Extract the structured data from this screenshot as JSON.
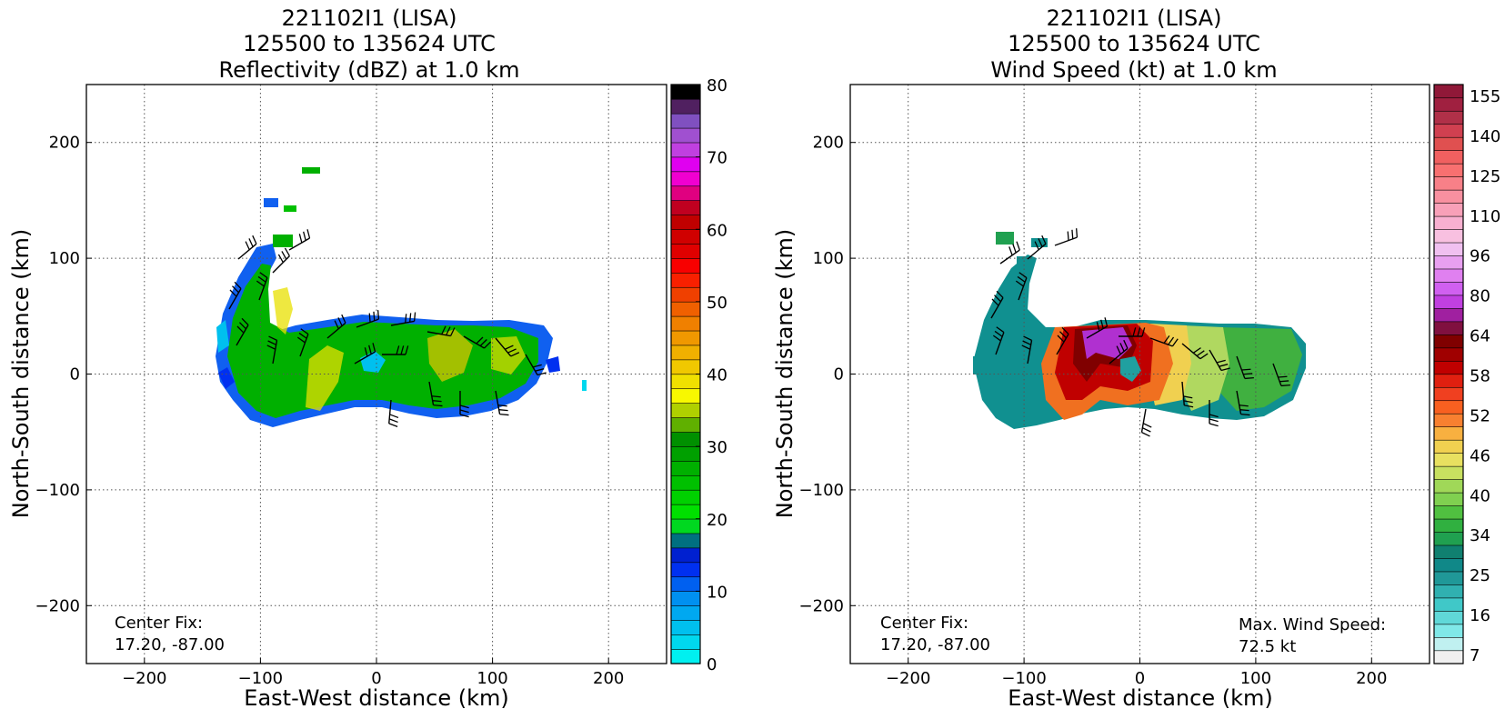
{
  "chart_data": [
    {
      "type": "heatmap",
      "title_lines": [
        "221102I1 (LISA)",
        "125500 to 135624 UTC",
        "Reflectivity (dBZ) at 1.0 km"
      ],
      "xlabel": "East-West distance (km)",
      "ylabel": "North-South distance (km)",
      "xlim": [
        -250,
        250
      ],
      "ylim": [
        -250,
        250
      ],
      "xticks": [
        -200,
        -100,
        0,
        100,
        200
      ],
      "yticks": [
        -200,
        -100,
        0,
        100,
        200
      ],
      "grid": true,
      "annotation_lines": [
        "Center Fix:",
        "17.20, -87.00"
      ],
      "colorbar": {
        "min": 0,
        "max": 80,
        "ticks": [
          0,
          10,
          20,
          30,
          40,
          50,
          60,
          70,
          80
        ],
        "colors": [
          "#00f0f0",
          "#00d8ee",
          "#00c0ee",
          "#00a8f0",
          "#0090f0",
          "#0060f0",
          "#0030f0",
          "#0020d0",
          "#007080",
          "#00d820",
          "#00e000",
          "#00d000",
          "#00c000",
          "#00b000",
          "#00a000",
          "#009000",
          "#60b000",
          "#b0d000",
          "#f8f800",
          "#f0e000",
          "#f0c800",
          "#f0b000",
          "#f09800",
          "#f08000",
          "#f06000",
          "#f04000",
          "#f82000",
          "#f80000",
          "#e00000",
          "#d00000",
          "#c00000",
          "#c00020",
          "#e00080",
          "#f000d0",
          "#e000f0",
          "#c040e0",
          "#a050d0",
          "#8050c0",
          "#502060",
          "#000000"
        ]
      }
    },
    {
      "type": "heatmap",
      "title_lines": [
        "221102I1 (LISA)",
        "125500 to 135624 UTC",
        "Wind Speed (kt) at 1.0 km"
      ],
      "xlabel": "East-West distance (km)",
      "ylabel": "North-South distance (km)",
      "xlim": [
        -250,
        250
      ],
      "ylim": [
        -250,
        250
      ],
      "xticks": [
        -200,
        -100,
        0,
        100,
        200
      ],
      "yticks": [
        -200,
        -100,
        0,
        100,
        200
      ],
      "grid": true,
      "annotation_lines": [
        "Center Fix:",
        "17.20, -87.00"
      ],
      "max_wind_lines": [
        "Max. Wind Speed:",
        "72.5 kt"
      ],
      "colorbar": {
        "tick_labels": [
          "7",
          "16",
          "25",
          "34",
          "40",
          "46",
          "52",
          "58",
          "64",
          "80",
          "96",
          "110",
          "125",
          "140",
          "155"
        ],
        "colors": [
          "#f0f0f0",
          "#c0f0f0",
          "#80e8e8",
          "#60d8d8",
          "#40c8c8",
          "#30b0b0",
          "#209898",
          "#108888",
          "#108070",
          "#20a050",
          "#30b040",
          "#50c040",
          "#80d050",
          "#a0d858",
          "#c8e060",
          "#e8e060",
          "#f0d050",
          "#f8b040",
          "#f88030",
          "#f86020",
          "#f04020",
          "#e02010",
          "#c00000",
          "#a00000",
          "#800000",
          "#801040",
          "#a020a0",
          "#c040e0",
          "#d060f0",
          "#e080f0",
          "#e8a0f0",
          "#f0c0f0",
          "#f8c0e0",
          "#f8b0d0",
          "#f8a0b8",
          "#f890a0",
          "#f88088",
          "#f87070",
          "#f06060",
          "#e05050",
          "#d04050",
          "#b03048",
          "#a02040",
          "#901838"
        ]
      }
    }
  ]
}
